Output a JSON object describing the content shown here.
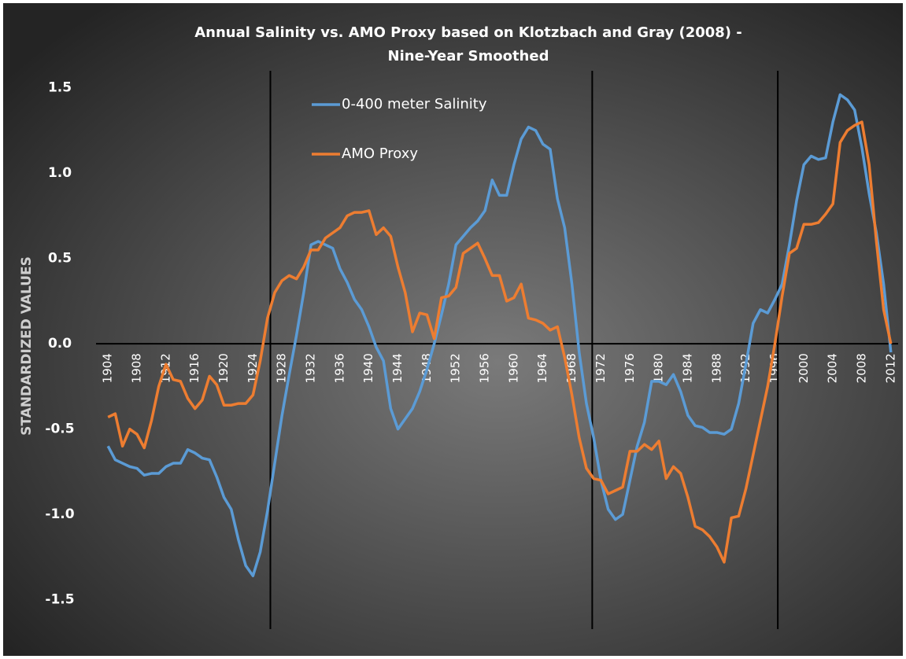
{
  "chart_data": {
    "type": "line",
    "title": "Annual Salinity vs. AMO Proxy based on Klotzbach and Gray (2008) -",
    "subtitle": "Nine-Year Smoothed",
    "y_label": "STANDARDIZED VALUES",
    "x": [
      1904,
      1905,
      1906,
      1907,
      1908,
      1909,
      1910,
      1911,
      1912,
      1913,
      1914,
      1915,
      1916,
      1917,
      1918,
      1919,
      1920,
      1921,
      1922,
      1923,
      1924,
      1925,
      1926,
      1927,
      1928,
      1929,
      1930,
      1931,
      1932,
      1933,
      1934,
      1935,
      1936,
      1937,
      1938,
      1939,
      1940,
      1941,
      1942,
      1943,
      1944,
      1945,
      1946,
      1947,
      1948,
      1949,
      1950,
      1951,
      1952,
      1953,
      1954,
      1955,
      1956,
      1957,
      1958,
      1959,
      1960,
      1961,
      1962,
      1963,
      1964,
      1965,
      1966,
      1967,
      1968,
      1969,
      1970,
      1971,
      1972,
      1973,
      1974,
      1975,
      1976,
      1977,
      1978,
      1979,
      1980,
      1981,
      1982,
      1983,
      1984,
      1985,
      1986,
      1987,
      1988,
      1989,
      1990,
      1991,
      1992,
      1993,
      1994,
      1995,
      1996,
      1997,
      1998,
      1999,
      2000,
      2001,
      2002,
      2003,
      2004,
      2005,
      2006,
      2007,
      2008,
      2009,
      2010,
      2011,
      2012
    ],
    "series": [
      {
        "name": "0-400 meter Salinity",
        "color": "#5b9bd5",
        "values": [
          -0.6,
          -0.68,
          -0.7,
          -0.72,
          -0.73,
          -0.77,
          -0.76,
          -0.76,
          -0.72,
          -0.7,
          -0.7,
          -0.62,
          -0.64,
          -0.67,
          -0.68,
          -0.78,
          -0.9,
          -0.97,
          -1.15,
          -1.3,
          -1.36,
          -1.22,
          -0.98,
          -0.7,
          -0.42,
          -0.18,
          0.05,
          0.3,
          0.58,
          0.6,
          0.58,
          0.56,
          0.44,
          0.36,
          0.26,
          0.2,
          0.1,
          -0.02,
          -0.1,
          -0.38,
          -0.5,
          -0.44,
          -0.38,
          -0.28,
          -0.15,
          0.0,
          0.17,
          0.35,
          0.58,
          0.63,
          0.68,
          0.72,
          0.78,
          0.96,
          0.87,
          0.87,
          1.05,
          1.2,
          1.27,
          1.25,
          1.17,
          1.14,
          0.85,
          0.68,
          0.35,
          -0.05,
          -0.35,
          -0.55,
          -0.8,
          -0.97,
          -1.03,
          -1.0,
          -0.8,
          -0.6,
          -0.46,
          -0.22,
          -0.22,
          -0.24,
          -0.18,
          -0.28,
          -0.42,
          -0.48,
          -0.49,
          -0.52,
          -0.52,
          -0.53,
          -0.5,
          -0.35,
          -0.12,
          0.12,
          0.2,
          0.18,
          0.26,
          0.35,
          0.58,
          0.84,
          1.05,
          1.1,
          1.08,
          1.09,
          1.3,
          1.46,
          1.43,
          1.37,
          1.15,
          0.88,
          0.65,
          0.35,
          -0.05
        ]
      },
      {
        "name": "AMO Proxy",
        "color": "#ed7d31",
        "values": [
          -0.43,
          -0.41,
          -0.6,
          -0.5,
          -0.53,
          -0.61,
          -0.45,
          -0.25,
          -0.12,
          -0.21,
          -0.22,
          -0.32,
          -0.38,
          -0.33,
          -0.19,
          -0.24,
          -0.36,
          -0.36,
          -0.35,
          -0.35,
          -0.3,
          -0.1,
          0.15,
          0.3,
          0.37,
          0.4,
          0.38,
          0.45,
          0.55,
          0.55,
          0.62,
          0.65,
          0.68,
          0.75,
          0.77,
          0.77,
          0.78,
          0.64,
          0.68,
          0.63,
          0.45,
          0.3,
          0.07,
          0.18,
          0.17,
          0.03,
          0.27,
          0.28,
          0.33,
          0.53,
          0.56,
          0.59,
          0.5,
          0.4,
          0.4,
          0.25,
          0.27,
          0.35,
          0.15,
          0.14,
          0.12,
          0.08,
          0.1,
          -0.08,
          -0.3,
          -0.55,
          -0.73,
          -0.79,
          -0.8,
          -0.88,
          -0.86,
          -0.84,
          -0.63,
          -0.63,
          -0.59,
          -0.62,
          -0.57,
          -0.79,
          -0.72,
          -0.76,
          -0.9,
          -1.07,
          -1.09,
          -1.13,
          -1.19,
          -1.28,
          -1.02,
          -1.01,
          -0.85,
          -0.65,
          -0.45,
          -0.25,
          0.0,
          0.28,
          0.53,
          0.56,
          0.7,
          0.7,
          0.71,
          0.76,
          0.82,
          1.18,
          1.25,
          1.28,
          1.3,
          1.05,
          0.6,
          0.2,
          0.0
        ]
      }
    ],
    "xlim": [
      1903,
      2013
    ],
    "xticks": [
      1904,
      1908,
      1912,
      1916,
      1920,
      1924,
      1928,
      1932,
      1936,
      1940,
      1944,
      1948,
      1952,
      1956,
      1960,
      1964,
      1968,
      1972,
      1976,
      1980,
      1984,
      1988,
      1992,
      1996,
      2000,
      2004,
      2008,
      2012
    ],
    "ylim": [
      -1.7,
      1.6
    ],
    "yticks": [
      {
        "value": 1.5,
        "label": "1.5"
      },
      {
        "value": 1.0,
        "label": "1.0"
      },
      {
        "value": 0.5,
        "label": "0.5"
      },
      {
        "value": 0.0,
        "label": "0.0"
      },
      {
        "value": -0.5,
        "label": "-0.5"
      },
      {
        "value": -1.0,
        "label": "-1.0"
      },
      {
        "value": -1.5,
        "label": "-1.5"
      }
    ],
    "vlines": [
      1926.4,
      1970.8,
      1996.4
    ]
  }
}
